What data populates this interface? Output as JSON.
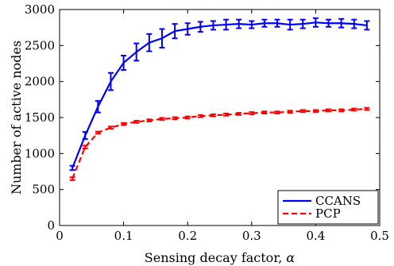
{
  "chart_data": {
    "type": "line",
    "title": "",
    "xlabel": "Sensing decay factor, ",
    "xlabel_symbol": "α",
    "ylabel": "Number of active nodes",
    "xlim": [
      0,
      0.5
    ],
    "ylim": [
      0,
      3000
    ],
    "x_ticks": [
      "0",
      "0.1",
      "0.2",
      "0.3",
      "0.4",
      "0.5"
    ],
    "x_tick_values": [
      0,
      0.1,
      0.2,
      0.3,
      0.4,
      0.5
    ],
    "y_ticks": [
      "0",
      "500",
      "1000",
      "1500",
      "2000",
      "2500",
      "3000"
    ],
    "y_tick_values": [
      0,
      500,
      1000,
      1500,
      2000,
      2500,
      3000
    ],
    "grid": false,
    "legend_position": "bottom-right",
    "x": [
      0.02,
      0.04,
      0.06,
      0.08,
      0.1,
      0.12,
      0.14,
      0.16,
      0.18,
      0.2,
      0.22,
      0.24,
      0.26,
      0.28,
      0.3,
      0.32,
      0.34,
      0.36,
      0.38,
      0.4,
      0.42,
      0.44,
      0.46,
      0.48
    ],
    "series": [
      {
        "name": "CCANS",
        "color": "#0000ff",
        "style": "solid",
        "values": [
          800,
          1250,
          1650,
          2000,
          2260,
          2410,
          2540,
          2600,
          2700,
          2730,
          2760,
          2780,
          2790,
          2800,
          2790,
          2810,
          2810,
          2790,
          2800,
          2820,
          2810,
          2810,
          2800,
          2780
        ],
        "errors": [
          30,
          50,
          80,
          120,
          100,
          120,
          120,
          130,
          100,
          80,
          70,
          60,
          70,
          60,
          50,
          50,
          50,
          70,
          60,
          60,
          50,
          60,
          60,
          60
        ]
      },
      {
        "name": "PCP",
        "color": "#ff0000",
        "style": "dashed",
        "values": [
          650,
          1090,
          1290,
          1360,
          1410,
          1440,
          1460,
          1480,
          1490,
          1500,
          1520,
          1530,
          1540,
          1550,
          1560,
          1570,
          1570,
          1580,
          1590,
          1590,
          1600,
          1600,
          1610,
          1620
        ],
        "errors": [
          20,
          20,
          15,
          15,
          15,
          15,
          15,
          15,
          15,
          15,
          15,
          15,
          15,
          15,
          15,
          15,
          15,
          15,
          15,
          15,
          15,
          15,
          15,
          15
        ]
      }
    ]
  }
}
